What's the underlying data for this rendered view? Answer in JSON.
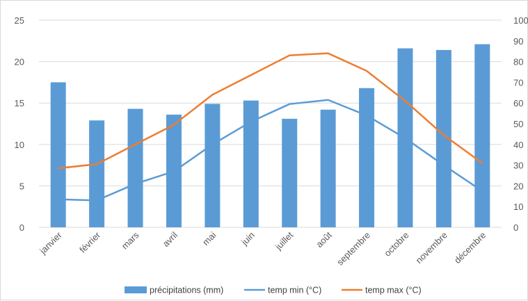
{
  "chart_data": {
    "type": "bar",
    "categories": [
      "janvier",
      "février",
      "mars",
      "avril",
      "mai",
      "juin",
      "juillet",
      "août",
      "septembre",
      "octobre",
      "novembre",
      "décembre"
    ],
    "series": [
      {
        "name": "précipitations (mm)",
        "kind": "bar",
        "axis": "left",
        "color": "#5b9bd5",
        "values": [
          17.5,
          12.9,
          14.3,
          13.6,
          14.9,
          15.3,
          13.1,
          14.2,
          16.8,
          21.6,
          21.4,
          22.1
        ]
      },
      {
        "name": "temp min (°C)",
        "kind": "line",
        "axis": "right",
        "color": "#5b9bd5",
        "values": [
          13.5,
          13,
          21,
          27,
          40,
          51,
          59.5,
          61.5,
          54,
          43,
          30,
          17.5
        ]
      },
      {
        "name": "temp max (°C)",
        "kind": "line",
        "axis": "right",
        "color": "#ed7d31",
        "values": [
          28.5,
          30.5,
          40,
          49.5,
          64,
          73.5,
          83,
          84,
          75.5,
          61,
          44.5,
          31
        ]
      }
    ],
    "y_left": {
      "lim": [
        0,
        25
      ],
      "ticks": [
        0,
        5,
        10,
        15,
        20,
        25
      ]
    },
    "y_right": {
      "lim": [
        0,
        100
      ],
      "ticks": [
        0,
        10,
        20,
        30,
        40,
        50,
        60,
        70,
        80,
        90,
        100
      ]
    },
    "grid": true,
    "legend_position": "bottom"
  }
}
